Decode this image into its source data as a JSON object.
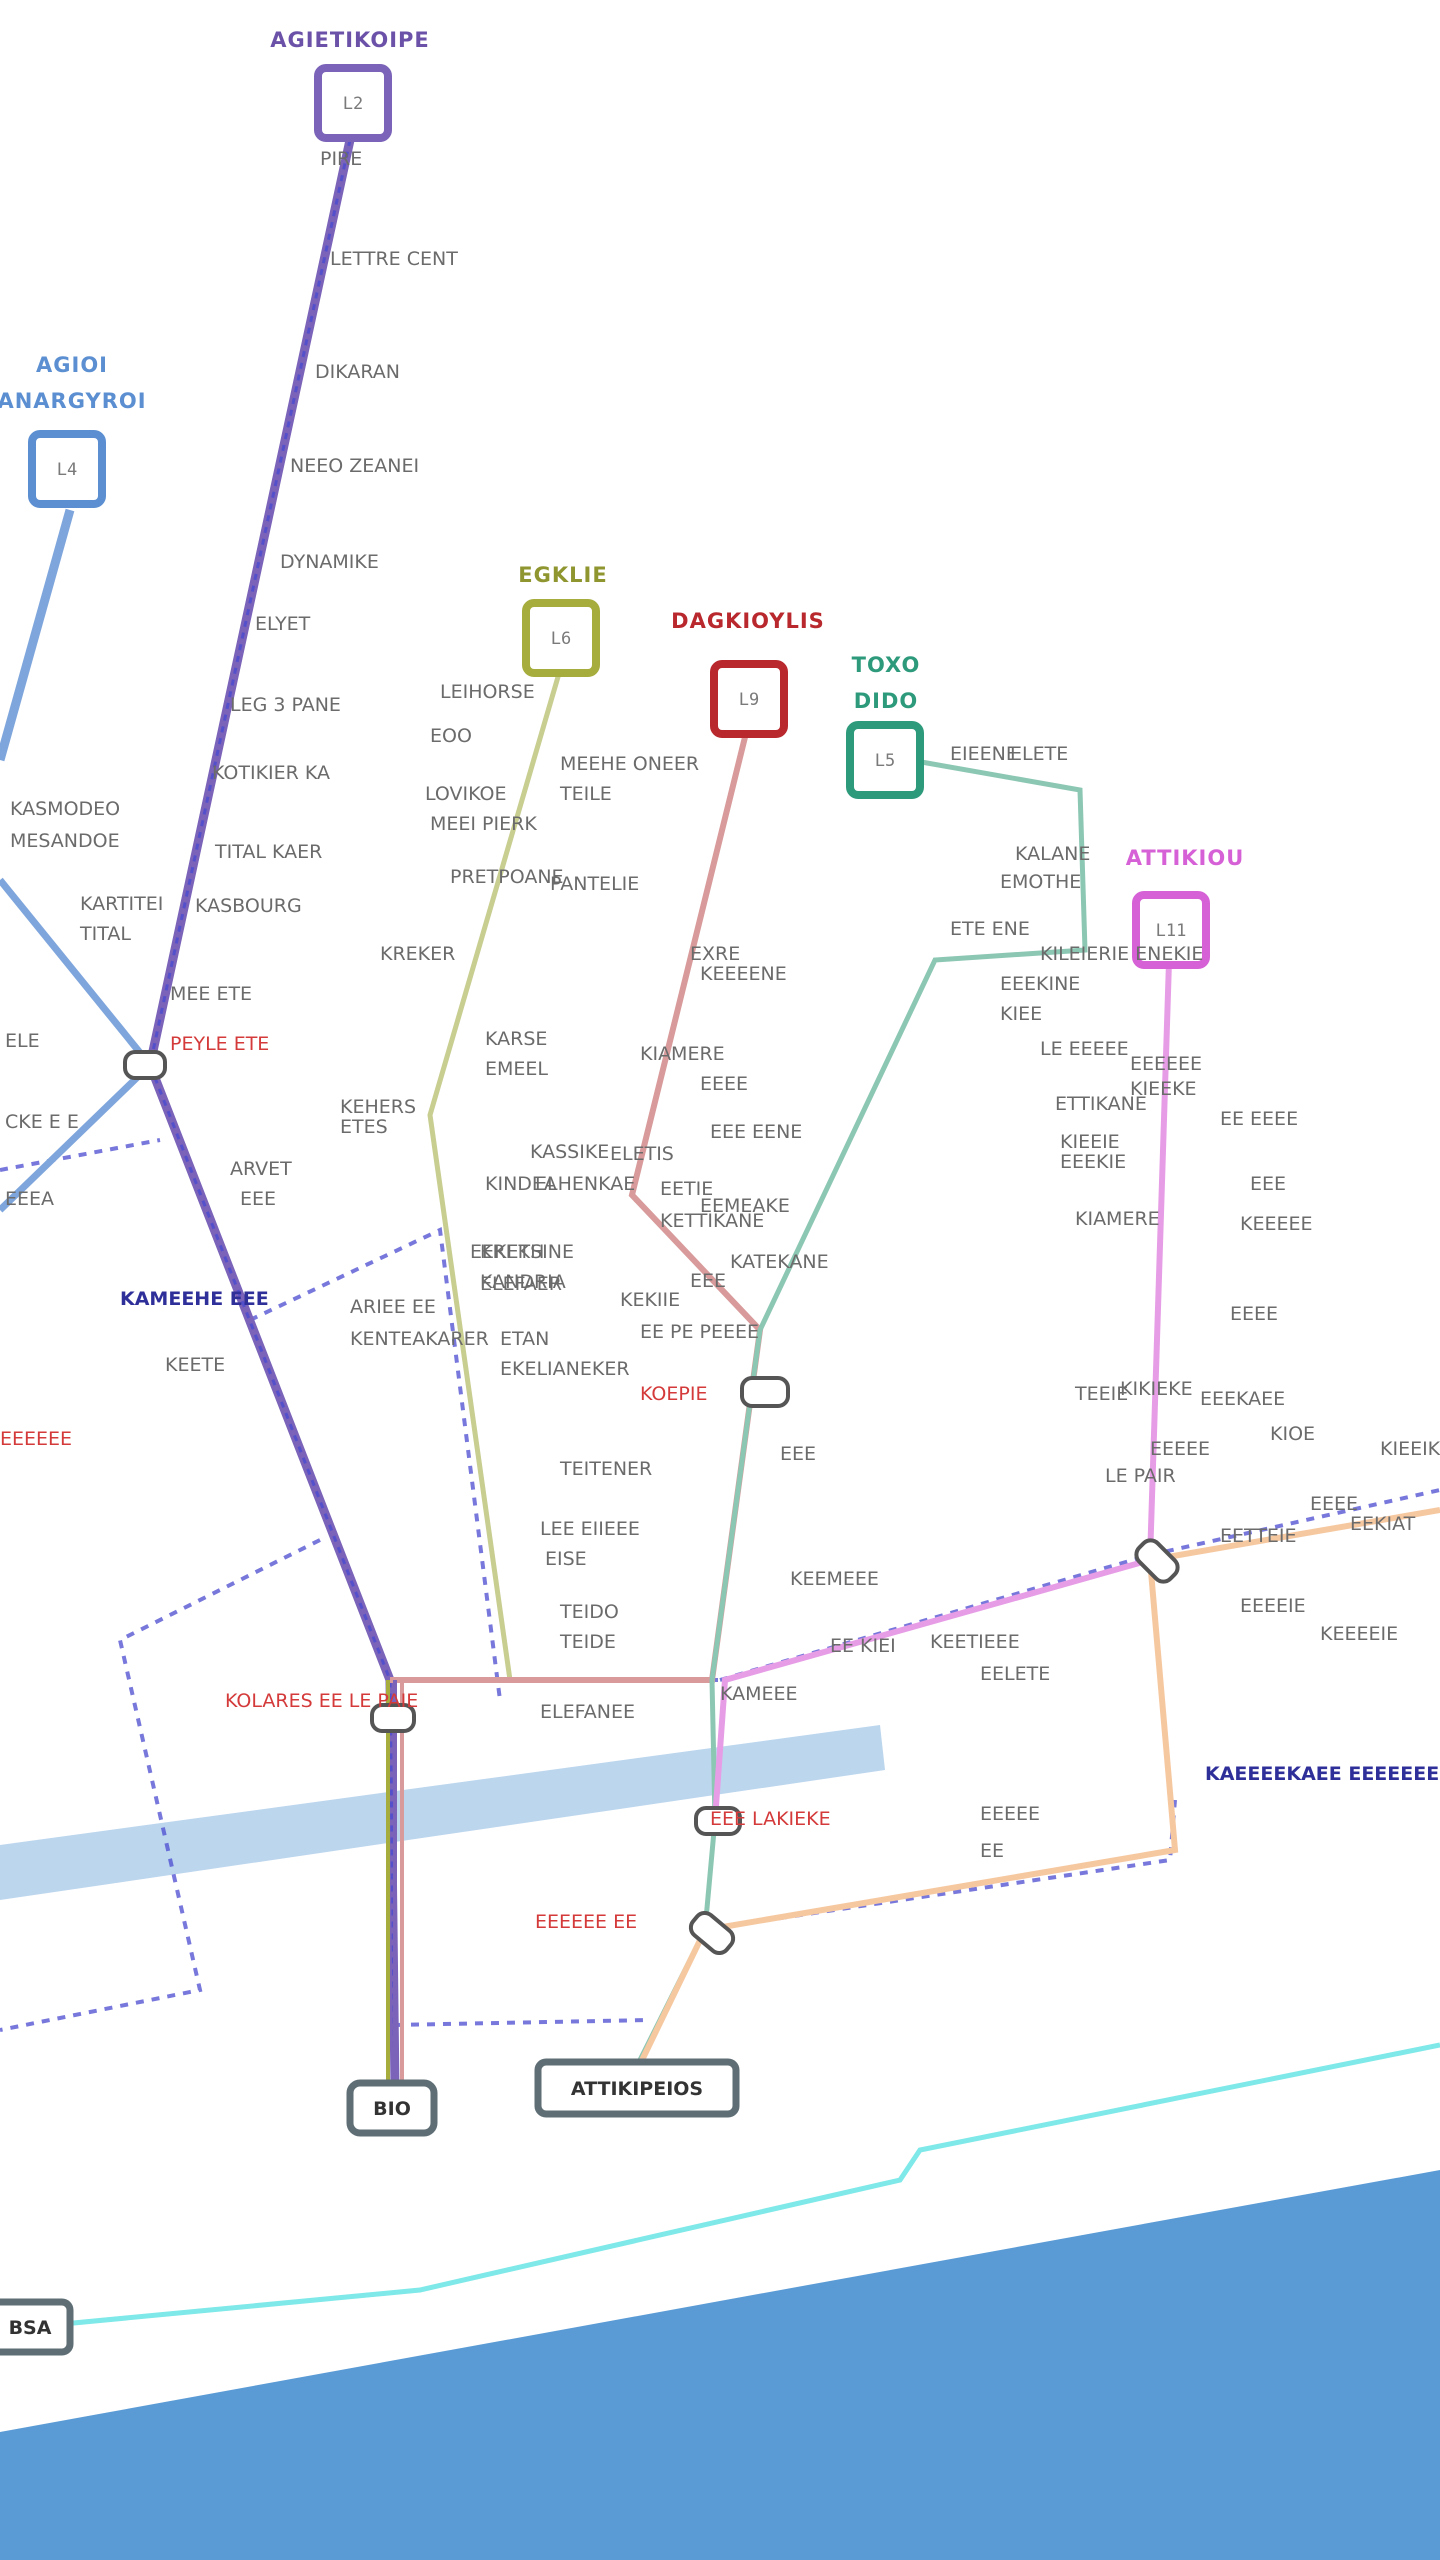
{
  "map": {
    "colors": {
      "water": "#5b9bd5",
      "river": "#bcd6ee",
      "line_purple": "#7a63b8",
      "line_blue": "#7fa6dc",
      "line_olive": "#a6ad3c",
      "line_red": "#b8282d",
      "line_teal": "#2e9a7c",
      "line_magenta": "#d660d6",
      "line_orange": "#f6b37a",
      "line_cyan": "#7fe8e8",
      "dashed_tram": "#4b4bd0",
      "hub_stroke": "#555555",
      "highlight_label": "#d43a3a"
    },
    "terminals": [
      {
        "id": "purple-north",
        "title": "AGIETIKOIPE",
        "code": "L2",
        "color": "#7a63b8"
      },
      {
        "id": "blue-north",
        "title_line1": "AGIOI",
        "title_line2": "ANARGYROI",
        "code": "L4",
        "color": "#5b8fd1"
      },
      {
        "id": "olive-north",
        "title": "EGKLIE",
        "code": "L6",
        "color": "#a6ad3c"
      },
      {
        "id": "red-north",
        "title": "DAGKIOYLIS",
        "code": "L9",
        "color": "#b8282d"
      },
      {
        "id": "teal-north",
        "title_line1": "TOXO",
        "title_line2": "DIDO",
        "code": "L5",
        "color": "#2e9a7c"
      },
      {
        "id": "magenta-north",
        "title": "ATTIKIOU",
        "code": "L11",
        "color": "#d660d6"
      }
    ],
    "hubs": [
      {
        "id": "hub-a",
        "name": "BIO"
      },
      {
        "id": "hub-b",
        "name": "ATTIKIPEIOS"
      },
      {
        "id": "hub-c",
        "name": "BSA"
      }
    ],
    "labels": [
      "PIRE",
      "LETTRE CENT",
      "DIKARAN",
      "NEEO ZEANEI",
      "DYNAMIKE",
      "ELYET",
      "LEG 3 PANE",
      "KOTIKIER KA",
      "TITAL KAER",
      "KASBOURG",
      "MEE ETE",
      "KASMODEO",
      "MESANDOE",
      "KARTITEI",
      "TITAL",
      "ELE",
      "CKE E E",
      "EEEA",
      "LEIHORSE",
      "EOO",
      "LOVIKOE",
      "MEEI PIERK",
      "PRETPOANE",
      "KREKER",
      "KARSE",
      "EMEEL",
      "KEHERS",
      "ETES",
      "ARVET",
      "EEE",
      "KEETE",
      "ARIEE EE",
      "KENTEAKARER",
      "MEEHE ONEER",
      "TEILE",
      "PANTELIE",
      "KASSIKE",
      "ELHENKAE",
      "EEKETH",
      "KANDRIA",
      "ELETIS",
      "KINDEA",
      "KREKSINE",
      "ELEFAER",
      "ETAN",
      "EKELIANEKER",
      "TEITENER",
      "LEE EIIEEE",
      "EISE",
      "TEIDO",
      "TEIDE",
      "ELEFANEE",
      "EIEENE",
      "ELETE",
      "KALANE",
      "EMOTHE",
      "ETE ENE",
      "EEEKINE",
      "KIEE",
      "KILEIERIE ENEKIE",
      "LE EEEEE",
      "ETTIKANE",
      "KIAMERE",
      "TEEIE",
      "EXRE",
      "KEEEENE",
      "KIAMERE",
      "EEEE",
      "EEE EENE",
      "EETIE",
      "KETTIKANE",
      "EEMEAKE",
      "KATEKANE",
      "EEE",
      "KEKIIE",
      "EE PE PEEEE",
      "EEE",
      "KEEMEEE",
      "EE KIEI",
      "KEETIEEE",
      "EELETE",
      "KAMEEE",
      "EEEEE",
      "EE",
      "KIEEIE",
      "EEEKIE",
      "EEEEEE",
      "KIEEKE",
      "EE EEEE",
      "EEE",
      "KEEEEE",
      "EEEE",
      "EEEEE",
      "LE PAIR",
      "KIKIEKE",
      "EEEKAEE",
      "KIOE",
      "EEEE",
      "EEKIAT",
      "KIEEIK",
      "EETTEIE",
      "EEEEIE",
      "KEEEEIE"
    ],
    "highlight_labels": [
      "PEYLE ETE",
      "KOEPIE",
      "KOLARES EE LE PAIE",
      "EEE LAKIEKE",
      "EEEEEE EE",
      "EEEEEE"
    ],
    "blue_labels": [
      "KAMEEHE EEE",
      "KAEEEEKAEE EEEEEEEEEE EEEEE"
    ]
  }
}
